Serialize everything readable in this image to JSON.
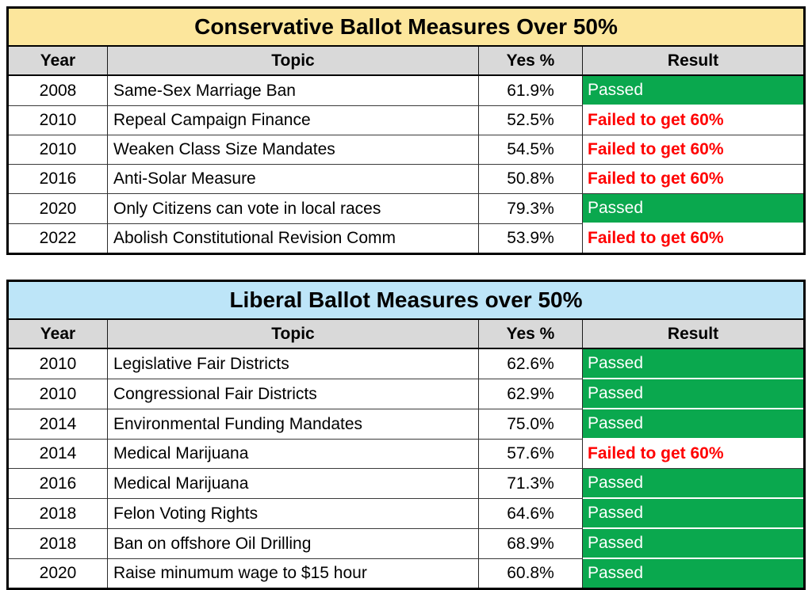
{
  "colors": {
    "passed_green": "#0AA84E",
    "failed_red": "#FF0000",
    "header_gray": "#D9D9D9",
    "conservative_title_yellow": "#FCE69C",
    "liberal_title_blue": "#BDE5F8",
    "border_black": "#000000"
  },
  "chart_data": [
    {
      "type": "table",
      "title": "Conservative Ballot Measures Over 50%",
      "title_bg": "#FCE69C",
      "columns": [
        "Year",
        "Topic",
        "Yes %",
        "Result"
      ],
      "rows": [
        {
          "year": "2008",
          "topic": "Same-Sex Marriage Ban",
          "yes_pct": "61.9%",
          "result": "Passed",
          "status": "passed"
        },
        {
          "year": "2010",
          "topic": "Repeal Campaign Finance",
          "yes_pct": "52.5%",
          "result": "Failed to get 60%",
          "status": "failed"
        },
        {
          "year": "2010",
          "topic": "Weaken Class Size Mandates",
          "yes_pct": "54.5%",
          "result": "Failed to get 60%",
          "status": "failed"
        },
        {
          "year": "2016",
          "topic": "Anti-Solar Measure",
          "yes_pct": "50.8%",
          "result": "Failed to get 60%",
          "status": "failed"
        },
        {
          "year": "2020",
          "topic": "Only Citizens can vote in local races",
          "yes_pct": "79.3%",
          "result": "Passed",
          "status": "passed"
        },
        {
          "year": "2022",
          "topic": "Abolish Constitutional Revision Comm",
          "yes_pct": "53.9%",
          "result": "Failed to get 60%",
          "status": "failed"
        }
      ]
    },
    {
      "type": "table",
      "title": "Liberal Ballot Measures over 50%",
      "title_bg": "#BDE5F8",
      "columns": [
        "Year",
        "Topic",
        "Yes %",
        "Result"
      ],
      "rows": [
        {
          "year": "2010",
          "topic": "Legislative Fair Districts",
          "yes_pct": "62.6%",
          "result": "Passed",
          "status": "passed"
        },
        {
          "year": "2010",
          "topic": "Congressional Fair Districts",
          "yes_pct": "62.9%",
          "result": "Passed",
          "status": "passed"
        },
        {
          "year": "2014",
          "topic": "Environmental Funding Mandates",
          "yes_pct": "75.0%",
          "result": "Passed",
          "status": "passed"
        },
        {
          "year": "2014",
          "topic": "Medical Marijuana",
          "yes_pct": "57.6%",
          "result": "Failed to get 60%",
          "status": "failed"
        },
        {
          "year": "2016",
          "topic": "Medical Marijuana",
          "yes_pct": "71.3%",
          "result": "Passed",
          "status": "passed"
        },
        {
          "year": "2018",
          "topic": "Felon Voting Rights",
          "yes_pct": "64.6%",
          "result": "Passed",
          "status": "passed"
        },
        {
          "year": "2018",
          "topic": "Ban on offshore Oil Drilling",
          "yes_pct": "68.9%",
          "result": "Passed",
          "status": "passed"
        },
        {
          "year": "2020",
          "topic": "Raise minumum wage to $15 hour",
          "yes_pct": "60.8%",
          "result": "Passed",
          "status": "passed"
        }
      ]
    }
  ]
}
